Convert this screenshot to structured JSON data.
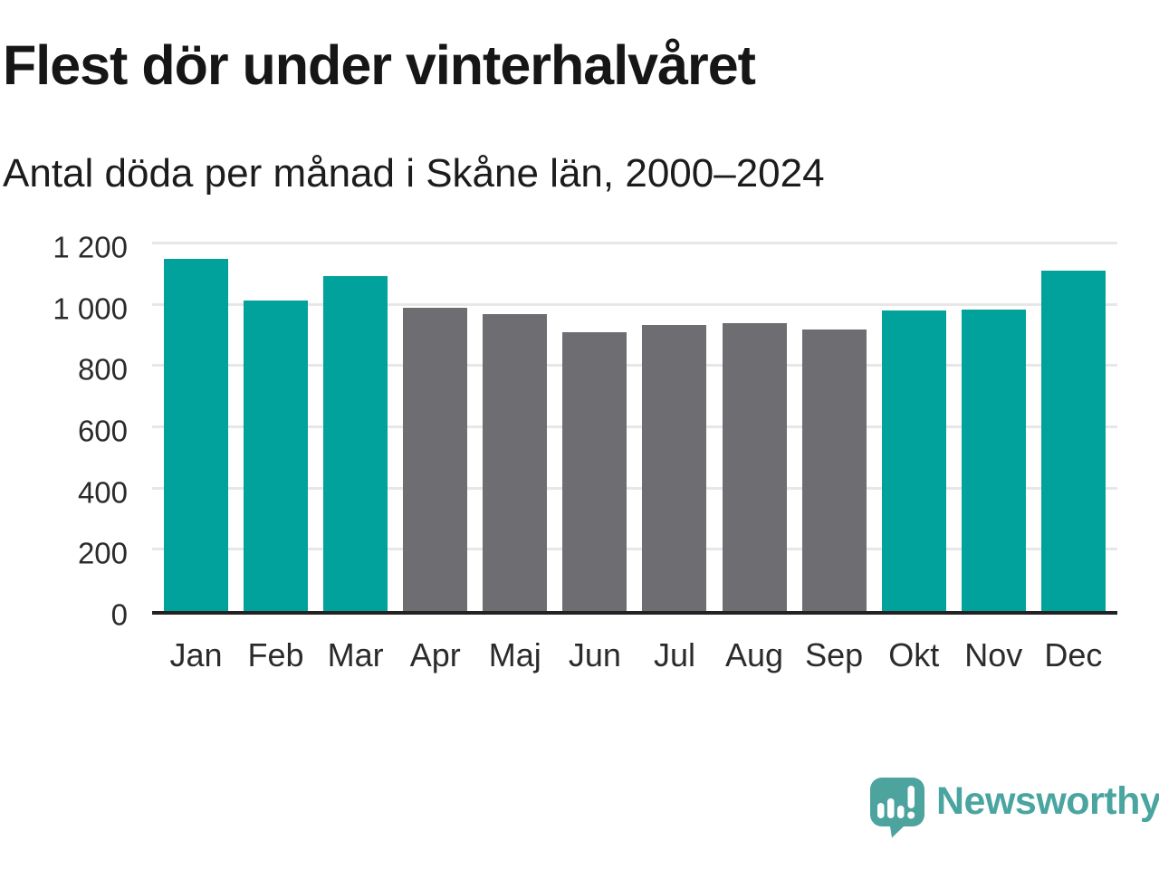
{
  "header": {
    "title": "Flest dör under vinterhalvåret",
    "subtitle": "Antal döda per månad i Skåne län, 2000–2024"
  },
  "chart_data": {
    "type": "bar",
    "title": "Flest dör under vinterhalvåret",
    "subtitle": "Antal döda per månad i Skåne län, 2000–2024",
    "categories": [
      "Jan",
      "Feb",
      "Mar",
      "Apr",
      "Maj",
      "Jun",
      "Jul",
      "Aug",
      "Sep",
      "Okt",
      "Nov",
      "Dec"
    ],
    "values": [
      1150,
      1015,
      1095,
      990,
      970,
      910,
      935,
      940,
      920,
      980,
      985,
      1110
    ],
    "bar_colors": [
      "#00a29b",
      "#00a29b",
      "#00a29b",
      "#6e6e72",
      "#6e6e72",
      "#6e6e72",
      "#6e6e72",
      "#6e6e72",
      "#6e6e72",
      "#00a29b",
      "#00a29b",
      "#00a29b"
    ],
    "highlight_color": "#00a29b",
    "muted_color": "#6e6e72",
    "xlabel": "",
    "ylabel": "",
    "ylim": [
      0,
      1200
    ],
    "yticks": [
      0,
      200,
      400,
      600,
      800,
      1000,
      1200
    ],
    "ytick_labels": [
      "0",
      "200",
      "400",
      "600",
      "800",
      "1 000",
      "1 200"
    ],
    "grid": "horizontal",
    "legend": "none"
  },
  "footer": {
    "brand": "Newsworthy",
    "brand_color": "#4aa5a1",
    "logo_color": "#4da49f",
    "logo_icon": "newsworthy-speech-bubble-bar-chart-icon"
  }
}
